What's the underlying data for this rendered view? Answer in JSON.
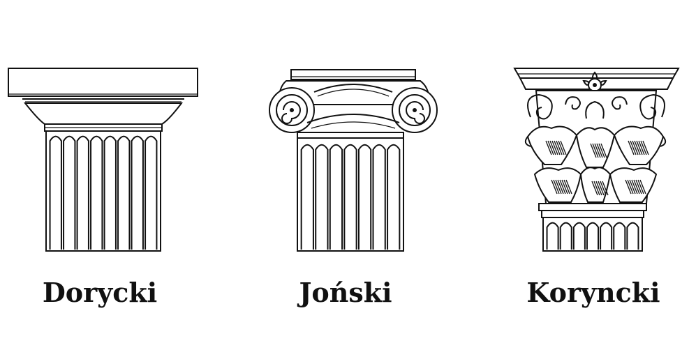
{
  "orders": [
    {
      "id": "doric",
      "label": "Dorycki",
      "icon": "doric-capital-icon"
    },
    {
      "id": "ionic",
      "label": "Joński",
      "icon": "ionic-capital-icon"
    },
    {
      "id": "corinthian",
      "label": "Koryncki",
      "icon": "corinthian-capital-icon"
    }
  ],
  "colors": {
    "ink": "#111111",
    "background": "#ffffff"
  }
}
